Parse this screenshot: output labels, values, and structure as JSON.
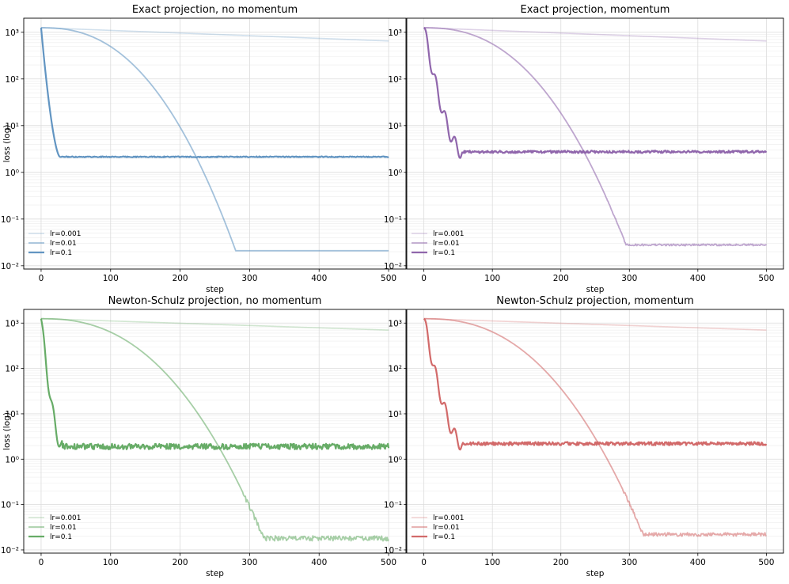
{
  "chart_data": [
    {
      "type": "line",
      "title": "Exact projection, no momentum",
      "xlabel": "step",
      "ylabel": "loss (log)",
      "yscale": "log",
      "xlim": [
        -25,
        525
      ],
      "ylim": [
        0.0085,
        2000
      ],
      "xticks": [
        "0",
        "100",
        "200",
        "300",
        "400",
        "500"
      ],
      "yticks": [
        "10⁻²",
        "10⁻¹",
        "10⁰",
        "10¹",
        "10²",
        "10³"
      ],
      "color": "#5a8fbf",
      "series": [
        {
          "name": "lr=0.001",
          "start": 1250,
          "end": 650,
          "noise": 0
        },
        {
          "name": "lr=0.01",
          "start": 1250,
          "knee": 200,
          "drop_end": 280,
          "floor": 0.021,
          "noise": 0
        },
        {
          "name": "lr=0.1",
          "start": 1250,
          "drop_end": 27,
          "floor": 2.15,
          "noise": 0.02
        }
      ]
    },
    {
      "type": "line",
      "title": "Exact projection, momentum",
      "xlabel": "step",
      "ylabel": "",
      "yscale": "log",
      "xlim": [
        -25,
        525
      ],
      "ylim": [
        0.0085,
        2000
      ],
      "xticks": [
        "0",
        "100",
        "200",
        "300",
        "400",
        "500"
      ],
      "yticks": [
        "10⁻²",
        "10⁻¹",
        "10⁰",
        "10¹",
        "10²",
        "10³"
      ],
      "color": "#8a5ea8",
      "series": [
        {
          "name": "lr=0.001",
          "start": 1250,
          "end": 650,
          "noise": 0
        },
        {
          "name": "lr=0.01",
          "start": 1250,
          "knee": 220,
          "drop_end": 295,
          "floor": 0.028,
          "noise": 0.04
        },
        {
          "name": "lr=0.1",
          "start": 1250,
          "drop_end": 55,
          "floor": 2.75,
          "noise": 0.05
        }
      ]
    },
    {
      "type": "line",
      "title": "Newton-Schulz projection, no momentum",
      "xlabel": "step",
      "ylabel": "loss (log)",
      "yscale": "log",
      "xlim": [
        -25,
        525
      ],
      "ylim": [
        0.0085,
        2000
      ],
      "xticks": [
        "0",
        "100",
        "200",
        "300",
        "400",
        "500"
      ],
      "yticks": [
        "10⁻²",
        "10⁻¹",
        "10⁰",
        "10¹",
        "10²",
        "10³"
      ],
      "color": "#5fa85f",
      "series": [
        {
          "name": "lr=0.001",
          "start": 1250,
          "end": 700,
          "noise": 0
        },
        {
          "name": "lr=0.01",
          "start": 1250,
          "knee": 240,
          "drop_end": 320,
          "floor": 0.018,
          "noise": 0.12
        },
        {
          "name": "lr=0.1",
          "start": 1250,
          "drop_end": 30,
          "floor": 1.9,
          "noise": 0.12
        }
      ]
    },
    {
      "type": "line",
      "title": "Newton-Schulz projection, momentum",
      "xlabel": "step",
      "ylabel": "",
      "yscale": "log",
      "xlim": [
        -25,
        525
      ],
      "ylim": [
        0.0085,
        2000
      ],
      "xticks": [
        "0",
        "100",
        "200",
        "300",
        "400",
        "500"
      ],
      "yticks": [
        "10⁻²",
        "10⁻¹",
        "10⁰",
        "10¹",
        "10²",
        "10³"
      ],
      "color": "#d06262",
      "series": [
        {
          "name": "lr=0.001",
          "start": 1250,
          "end": 700,
          "noise": 0
        },
        {
          "name": "lr=0.01",
          "start": 1250,
          "knee": 230,
          "drop_end": 320,
          "floor": 0.022,
          "noise": 0.08
        },
        {
          "name": "lr=0.1",
          "start": 1250,
          "drop_end": 55,
          "floor": 2.2,
          "noise": 0.07
        }
      ]
    }
  ]
}
